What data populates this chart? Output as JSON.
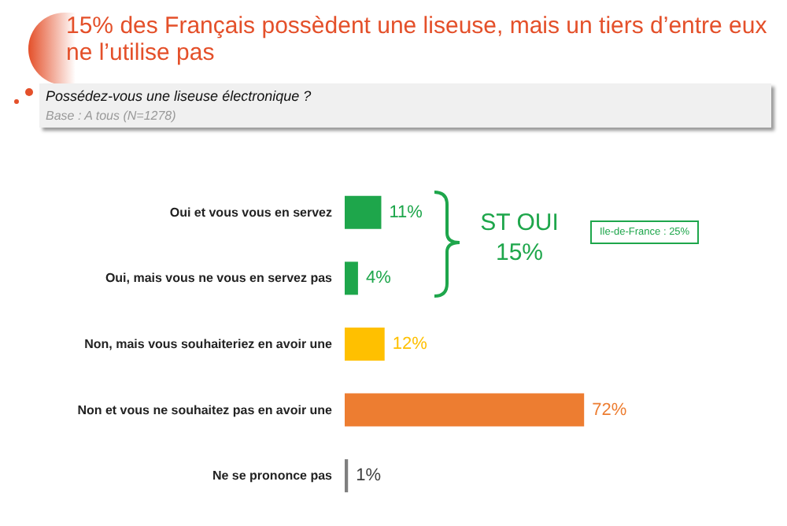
{
  "chart_data": {
    "type": "bar",
    "orientation": "horizontal",
    "title": "15% des Français possèdent une liseuse, mais un tiers d’entre eux ne l’utilise pas",
    "subtitle": "Possédez-vous une liseuse électronique ?",
    "categories": [
      "Oui et vous vous en servez",
      "Oui, mais vous ne vous en servez pas",
      "Non, mais vous souhaiteriez en avoir une",
      "Non et vous ne souhaitez pas en avoir une",
      "Ne se prononce pas"
    ],
    "values": [
      11,
      4,
      12,
      72,
      1
    ],
    "value_labels": [
      "11%",
      "4%",
      "12%",
      "72%",
      "1%"
    ],
    "colors": [
      "#1ea64b",
      "#1ea64b",
      "#ffc000",
      "#ed7d31",
      "#7f7f7f"
    ],
    "annotations": [
      "Base : A tous (N=1278)",
      "ST OUI 15%",
      "Ile-de-France : 25%"
    ]
  }
}
